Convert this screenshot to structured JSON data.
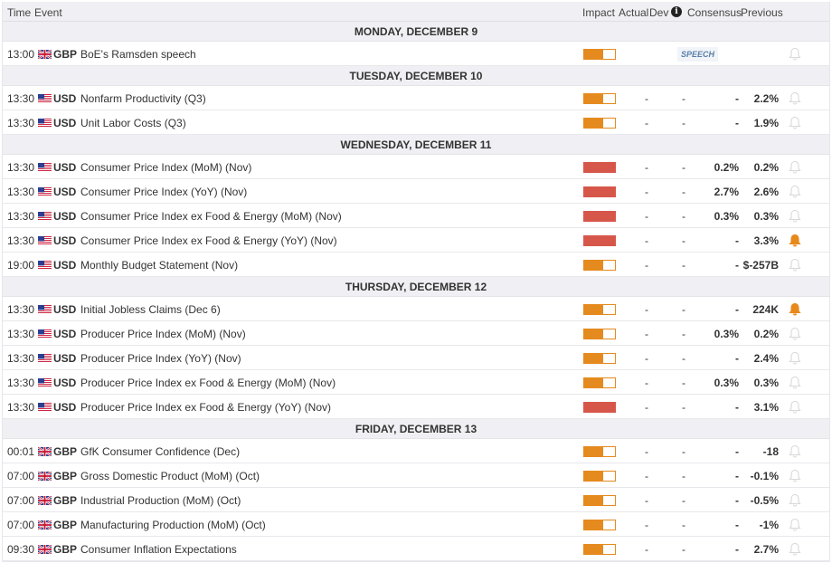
{
  "header": {
    "time": "Time",
    "event": "Event",
    "impact": "Impact",
    "actual": "Actual",
    "dev": "Dev",
    "info": "i",
    "consensus": "Consensus",
    "previous": "Previous"
  },
  "colors": {
    "medium_impact": "#e58a1e",
    "high_impact": "#d6574a",
    "bell_active": "#e8891c",
    "bell_inactive": "#d8d8d8"
  },
  "days": [
    {
      "label": "MONDAY, DECEMBER 9",
      "events": [
        {
          "time": "13:00",
          "flag": "uk-flag",
          "currency": "GBP",
          "event": "BoE's Ramsden speech",
          "impact": "medium",
          "badge": "SPEECH",
          "alert": false
        }
      ]
    },
    {
      "label": "TUESDAY, DECEMBER 10",
      "events": [
        {
          "time": "13:30",
          "flag": "us-flag",
          "currency": "USD",
          "event": "Nonfarm Productivity (Q3)",
          "impact": "medium",
          "actual": "-",
          "dev": "-",
          "consensus": "-",
          "previous": "2.2%",
          "alert": false
        },
        {
          "time": "13:30",
          "flag": "us-flag",
          "currency": "USD",
          "event": "Unit Labor Costs (Q3)",
          "impact": "medium",
          "actual": "-",
          "dev": "-",
          "consensus": "-",
          "previous": "1.9%",
          "alert": false
        }
      ]
    },
    {
      "label": "WEDNESDAY, DECEMBER 11",
      "events": [
        {
          "time": "13:30",
          "flag": "us-flag",
          "currency": "USD",
          "event": "Consumer Price Index (MoM) (Nov)",
          "impact": "high",
          "actual": "-",
          "dev": "-",
          "consensus": "0.2%",
          "previous": "0.2%",
          "alert": false
        },
        {
          "time": "13:30",
          "flag": "us-flag",
          "currency": "USD",
          "event": "Consumer Price Index (YoY) (Nov)",
          "impact": "high",
          "actual": "-",
          "dev": "-",
          "consensus": "2.7%",
          "previous": "2.6%",
          "alert": false
        },
        {
          "time": "13:30",
          "flag": "us-flag",
          "currency": "USD",
          "event": "Consumer Price Index ex Food & Energy (MoM) (Nov)",
          "impact": "high",
          "actual": "-",
          "dev": "-",
          "consensus": "0.3%",
          "previous": "0.3%",
          "alert": false
        },
        {
          "time": "13:30",
          "flag": "us-flag",
          "currency": "USD",
          "event": "Consumer Price Index ex Food & Energy (YoY) (Nov)",
          "impact": "high",
          "actual": "-",
          "dev": "-",
          "consensus": "-",
          "previous": "3.3%",
          "alert": true
        },
        {
          "time": "19:00",
          "flag": "us-flag",
          "currency": "USD",
          "event": "Monthly Budget Statement (Nov)",
          "impact": "medium",
          "actual": "-",
          "dev": "-",
          "consensus": "-",
          "previous": "$-257B",
          "alert": false
        }
      ]
    },
    {
      "label": "THURSDAY, DECEMBER 12",
      "events": [
        {
          "time": "13:30",
          "flag": "us-flag",
          "currency": "USD",
          "event": "Initial Jobless Claims (Dec 6)",
          "impact": "medium",
          "actual": "-",
          "dev": "-",
          "consensus": "-",
          "previous": "224K",
          "alert": true
        },
        {
          "time": "13:30",
          "flag": "us-flag",
          "currency": "USD",
          "event": "Producer Price Index (MoM) (Nov)",
          "impact": "medium",
          "actual": "-",
          "dev": "-",
          "consensus": "0.3%",
          "previous": "0.2%",
          "alert": false
        },
        {
          "time": "13:30",
          "flag": "us-flag",
          "currency": "USD",
          "event": "Producer Price Index (YoY) (Nov)",
          "impact": "medium",
          "actual": "-",
          "dev": "-",
          "consensus": "-",
          "previous": "2.4%",
          "alert": false
        },
        {
          "time": "13:30",
          "flag": "us-flag",
          "currency": "USD",
          "event": "Producer Price Index ex Food & Energy (MoM) (Nov)",
          "impact": "medium",
          "actual": "-",
          "dev": "-",
          "consensus": "0.3%",
          "previous": "0.3%",
          "alert": false
        },
        {
          "time": "13:30",
          "flag": "us-flag",
          "currency": "USD",
          "event": "Producer Price Index ex Food & Energy (YoY) (Nov)",
          "impact": "high",
          "actual": "-",
          "dev": "-",
          "consensus": "-",
          "previous": "3.1%",
          "alert": false
        }
      ]
    },
    {
      "label": "FRIDAY, DECEMBER 13",
      "events": [
        {
          "time": "00:01",
          "flag": "uk-flag",
          "currency": "GBP",
          "event": "GfK Consumer Confidence (Dec)",
          "impact": "medium",
          "actual": "-",
          "dev": "-",
          "consensus": "-",
          "previous": "-18",
          "alert": false
        },
        {
          "time": "07:00",
          "flag": "uk-flag",
          "currency": "GBP",
          "event": "Gross Domestic Product (MoM) (Oct)",
          "impact": "medium",
          "actual": "-",
          "dev": "-",
          "consensus": "-",
          "previous": "-0.1%",
          "alert": false
        },
        {
          "time": "07:00",
          "flag": "uk-flag",
          "currency": "GBP",
          "event": "Industrial Production (MoM) (Oct)",
          "impact": "medium",
          "actual": "-",
          "dev": "-",
          "consensus": "-",
          "previous": "-0.5%",
          "alert": false
        },
        {
          "time": "07:00",
          "flag": "uk-flag",
          "currency": "GBP",
          "event": "Manufacturing Production (MoM) (Oct)",
          "impact": "medium",
          "actual": "-",
          "dev": "-",
          "consensus": "-",
          "previous": "-1%",
          "alert": false
        },
        {
          "time": "09:30",
          "flag": "uk-flag",
          "currency": "GBP",
          "event": "Consumer Inflation Expectations",
          "impact": "medium",
          "actual": "-",
          "dev": "-",
          "consensus": "-",
          "previous": "2.7%",
          "alert": false
        }
      ]
    }
  ]
}
